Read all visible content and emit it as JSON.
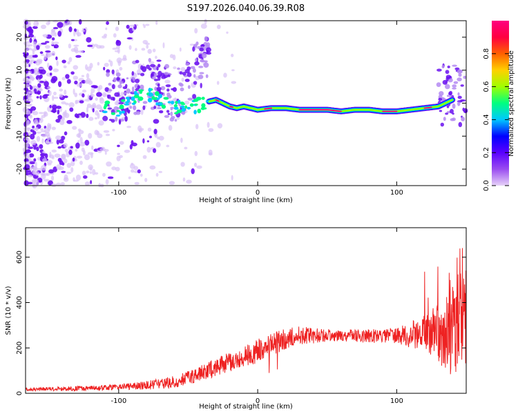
{
  "title": "S197.2026.040.06.39.R08",
  "chart_data": [
    {
      "type": "heatmap",
      "name": "spectrogram",
      "xlabel": "Height of straight line (km)",
      "ylabel": "Frequency (Hz)",
      "xlim": [
        -167,
        150
      ],
      "ylim": [
        -25,
        25
      ],
      "xticks": [
        -100,
        0,
        100
      ],
      "xtick_labels": [
        "-100",
        "0",
        "100"
      ],
      "yticks": [
        -20,
        -10,
        0,
        10,
        20
      ],
      "ytick_labels": [
        "-20",
        "-10",
        "0",
        "10",
        "20"
      ],
      "ridge_x": [
        -167,
        -130,
        -110,
        -100,
        -90,
        -80,
        -70,
        -60,
        -50,
        -40,
        -35,
        -30,
        -25,
        -20,
        -15,
        -10,
        -5,
        0,
        10,
        20,
        30,
        40,
        50,
        60,
        70,
        80,
        90,
        100,
        110,
        120,
        130,
        140,
        145,
        150
      ],
      "ridge_y": [
        -3,
        -2,
        -1,
        -2,
        1,
        3,
        1,
        -1,
        -2,
        0,
        0.5,
        1,
        0,
        -1,
        -1.5,
        -1,
        -1.5,
        -2,
        -1.5,
        -1.5,
        -2,
        -2,
        -2,
        -2.5,
        -2,
        -2,
        -2.5,
        -2.5,
        -2,
        -1.5,
        -1,
        1,
        3,
        6
      ],
      "ridge_amplitude_peak": 0.95,
      "colorbar": {
        "label": "Normalized spectral amplitude",
        "ticks": [
          0.0,
          0.2,
          0.4,
          0.6,
          0.8
        ],
        "tick_labels": [
          "0.0",
          "0.2",
          "0.4",
          "0.6",
          "0.8"
        ],
        "range": [
          0,
          1
        ],
        "colors": [
          "#e6d2f8",
          "#9a4cf0",
          "#5a00ff",
          "#0000ff",
          "#00c8ff",
          "#00ff80",
          "#a0ff00",
          "#ffd000",
          "#ff6000",
          "#ff0040",
          "#ff0080"
        ]
      }
    },
    {
      "type": "line",
      "name": "snr",
      "xlabel": "Height of straight line (km)",
      "ylabel": "SNR (10 * v/v)",
      "xlim": [
        -167,
        150
      ],
      "ylim": [
        0,
        730
      ],
      "xticks": [
        -100,
        0,
        100
      ],
      "xtick_labels": [
        "-100",
        "0",
        "100"
      ],
      "yticks": [
        0,
        200,
        400,
        600
      ],
      "ytick_labels": [
        "0",
        "200",
        "400",
        "600"
      ],
      "color": "#ee2222",
      "envelope_x": [
        -167,
        -140,
        -120,
        -100,
        -80,
        -60,
        -50,
        -40,
        -30,
        -20,
        -10,
        0,
        10,
        20,
        30,
        40,
        60,
        80,
        100,
        110,
        120,
        130,
        140,
        145,
        150
      ],
      "envelope_y": [
        18,
        20,
        22,
        28,
        35,
        50,
        70,
        90,
        115,
        140,
        160,
        185,
        215,
        240,
        255,
        255,
        255,
        252,
        255,
        258,
        262,
        265,
        270,
        300,
        320
      ],
      "noise_x": [
        -167,
        -100,
        -50,
        0,
        20,
        60,
        100,
        120,
        130,
        140,
        150
      ],
      "noise_amplitude": [
        8,
        12,
        30,
        55,
        45,
        25,
        35,
        80,
        130,
        200,
        230
      ]
    }
  ]
}
